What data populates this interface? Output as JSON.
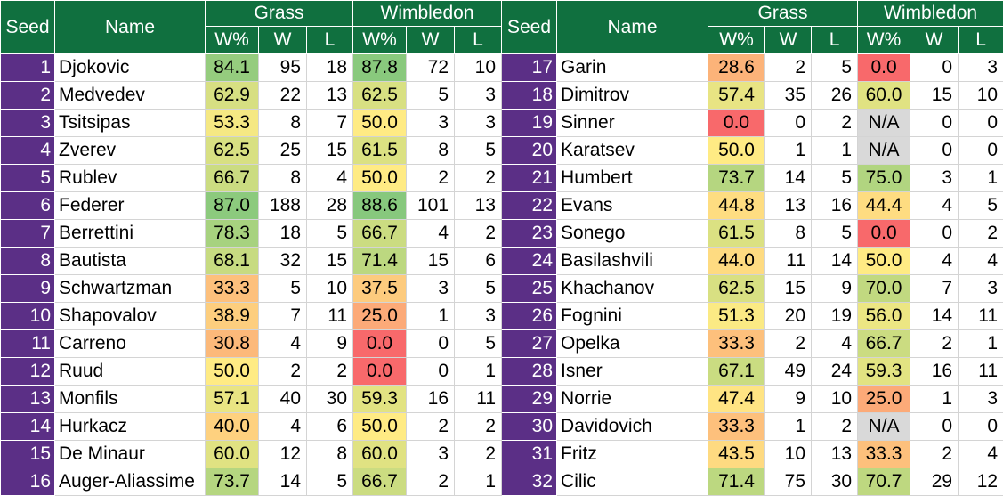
{
  "headers": {
    "seed": "Seed",
    "name": "Name",
    "grass": "Grass",
    "wimbledon": "Wimbledon",
    "wpct": "W%",
    "w": "W",
    "l": "L"
  },
  "rows": [
    {
      "seed": "1",
      "name": "Djokovic",
      "g_pct": "84.1",
      "g_w": "95",
      "g_l": "18",
      "w_pct": "87.8",
      "w_w": "72",
      "w_l": "10"
    },
    {
      "seed": "2",
      "name": "Medvedev",
      "g_pct": "62.9",
      "g_w": "22",
      "g_l": "13",
      "w_pct": "62.5",
      "w_w": "5",
      "w_l": "3"
    },
    {
      "seed": "3",
      "name": "Tsitsipas",
      "g_pct": "53.3",
      "g_w": "8",
      "g_l": "7",
      "w_pct": "50.0",
      "w_w": "3",
      "w_l": "3"
    },
    {
      "seed": "4",
      "name": "Zverev",
      "g_pct": "62.5",
      "g_w": "25",
      "g_l": "15",
      "w_pct": "61.5",
      "w_w": "8",
      "w_l": "5"
    },
    {
      "seed": "5",
      "name": "Rublev",
      "g_pct": "66.7",
      "g_w": "8",
      "g_l": "4",
      "w_pct": "50.0",
      "w_w": "2",
      "w_l": "2"
    },
    {
      "seed": "6",
      "name": "Federer",
      "g_pct": "87.0",
      "g_w": "188",
      "g_l": "28",
      "w_pct": "88.6",
      "w_w": "101",
      "w_l": "13"
    },
    {
      "seed": "7",
      "name": "Berrettini",
      "g_pct": "78.3",
      "g_w": "18",
      "g_l": "5",
      "w_pct": "66.7",
      "w_w": "4",
      "w_l": "2"
    },
    {
      "seed": "8",
      "name": "Bautista",
      "g_pct": "68.1",
      "g_w": "32",
      "g_l": "15",
      "w_pct": "71.4",
      "w_w": "15",
      "w_l": "6"
    },
    {
      "seed": "9",
      "name": "Schwartzman",
      "g_pct": "33.3",
      "g_w": "5",
      "g_l": "10",
      "w_pct": "37.5",
      "w_w": "3",
      "w_l": "5"
    },
    {
      "seed": "10",
      "name": "Shapovalov",
      "g_pct": "38.9",
      "g_w": "7",
      "g_l": "11",
      "w_pct": "25.0",
      "w_w": "1",
      "w_l": "3"
    },
    {
      "seed": "11",
      "name": "Carreno",
      "g_pct": "30.8",
      "g_w": "4",
      "g_l": "9",
      "w_pct": "0.0",
      "w_w": "0",
      "w_l": "5"
    },
    {
      "seed": "12",
      "name": "Ruud",
      "g_pct": "50.0",
      "g_w": "2",
      "g_l": "2",
      "w_pct": "0.0",
      "w_w": "0",
      "w_l": "1"
    },
    {
      "seed": "13",
      "name": "Monfils",
      "g_pct": "57.1",
      "g_w": "40",
      "g_l": "30",
      "w_pct": "59.3",
      "w_w": "16",
      "w_l": "11"
    },
    {
      "seed": "14",
      "name": "Hurkacz",
      "g_pct": "40.0",
      "g_w": "4",
      "g_l": "6",
      "w_pct": "50.0",
      "w_w": "2",
      "w_l": "2"
    },
    {
      "seed": "15",
      "name": "De Minaur",
      "g_pct": "60.0",
      "g_w": "12",
      "g_l": "8",
      "w_pct": "60.0",
      "w_w": "3",
      "w_l": "2"
    },
    {
      "seed": "16",
      "name": "Auger-Aliassime",
      "g_pct": "73.7",
      "g_w": "14",
      "g_l": "5",
      "w_pct": "66.7",
      "w_w": "2",
      "w_l": "1"
    },
    {
      "seed": "17",
      "name": "Garin",
      "g_pct": "28.6",
      "g_w": "2",
      "g_l": "5",
      "w_pct": "0.0",
      "w_w": "0",
      "w_l": "3"
    },
    {
      "seed": "18",
      "name": "Dimitrov",
      "g_pct": "57.4",
      "g_w": "35",
      "g_l": "26",
      "w_pct": "60.0",
      "w_w": "15",
      "w_l": "10"
    },
    {
      "seed": "19",
      "name": "Sinner",
      "g_pct": "0.0",
      "g_w": "0",
      "g_l": "2",
      "w_pct": "N/A",
      "w_w": "0",
      "w_l": "0"
    },
    {
      "seed": "20",
      "name": "Karatsev",
      "g_pct": "50.0",
      "g_w": "1",
      "g_l": "1",
      "w_pct": "N/A",
      "w_w": "0",
      "w_l": "0"
    },
    {
      "seed": "21",
      "name": "Humbert",
      "g_pct": "73.7",
      "g_w": "14",
      "g_l": "5",
      "w_pct": "75.0",
      "w_w": "3",
      "w_l": "1"
    },
    {
      "seed": "22",
      "name": "Evans",
      "g_pct": "44.8",
      "g_w": "13",
      "g_l": "16",
      "w_pct": "44.4",
      "w_w": "4",
      "w_l": "5"
    },
    {
      "seed": "23",
      "name": "Sonego",
      "g_pct": "61.5",
      "g_w": "8",
      "g_l": "5",
      "w_pct": "0.0",
      "w_w": "0",
      "w_l": "2"
    },
    {
      "seed": "24",
      "name": "Basilashvili",
      "g_pct": "44.0",
      "g_w": "11",
      "g_l": "14",
      "w_pct": "50.0",
      "w_w": "4",
      "w_l": "4"
    },
    {
      "seed": "25",
      "name": "Khachanov",
      "g_pct": "62.5",
      "g_w": "15",
      "g_l": "9",
      "w_pct": "70.0",
      "w_w": "7",
      "w_l": "3"
    },
    {
      "seed": "26",
      "name": "Fognini",
      "g_pct": "51.3",
      "g_w": "20",
      "g_l": "19",
      "w_pct": "56.0",
      "w_w": "14",
      "w_l": "11"
    },
    {
      "seed": "27",
      "name": "Opelka",
      "g_pct": "33.3",
      "g_w": "2",
      "g_l": "4",
      "w_pct": "66.7",
      "w_w": "2",
      "w_l": "1"
    },
    {
      "seed": "28",
      "name": "Isner",
      "g_pct": "67.1",
      "g_w": "49",
      "g_l": "24",
      "w_pct": "59.3",
      "w_w": "16",
      "w_l": "11"
    },
    {
      "seed": "29",
      "name": "Norrie",
      "g_pct": "47.4",
      "g_w": "9",
      "g_l": "10",
      "w_pct": "25.0",
      "w_w": "1",
      "w_l": "3"
    },
    {
      "seed": "30",
      "name": "Davidovich",
      "g_pct": "33.3",
      "g_w": "1",
      "g_l": "2",
      "w_pct": "N/A",
      "w_w": "0",
      "w_l": "0"
    },
    {
      "seed": "31",
      "name": "Fritz",
      "g_pct": "43.5",
      "g_w": "10",
      "g_l": "13",
      "w_pct": "33.3",
      "w_w": "2",
      "w_l": "4"
    },
    {
      "seed": "32",
      "name": "Cilic",
      "g_pct": "71.4",
      "g_w": "75",
      "g_l": "30",
      "w_pct": "70.7",
      "w_w": "29",
      "w_l": "12"
    }
  ]
}
